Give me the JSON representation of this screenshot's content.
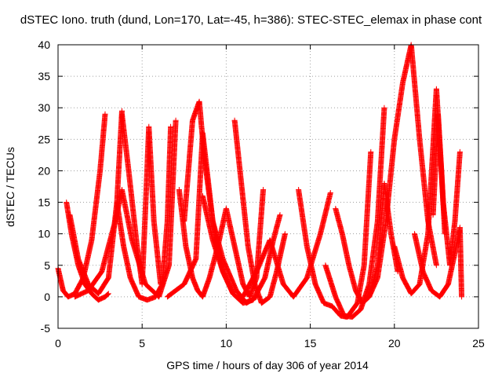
{
  "chart_data": {
    "type": "scatter",
    "title": "dSTEC Iono. truth (dund, Lon=170, Lat=-45, h=386): STEC-STEC_elemax in phase cont",
    "xlabel": "GPS time / hours of day 306 of year 2014",
    "ylabel": "dSTEC  / TECUs",
    "xlim": [
      0,
      25
    ],
    "ylim": [
      -5,
      40
    ],
    "xticks": [
      0,
      5,
      10,
      15,
      20,
      25
    ],
    "yticks": [
      -5,
      0,
      5,
      10,
      15,
      20,
      25,
      30,
      35,
      40
    ],
    "grid": true,
    "marker": "+",
    "color": "#ff0000",
    "series": [
      {
        "x": [
          0.0,
          0.3,
          0.6,
          1.0,
          1.5,
          2.0,
          2.5,
          2.8
        ],
        "y": [
          4.5,
          1.0,
          0.0,
          0.5,
          3.0,
          9.0,
          20.0,
          29.0
        ]
      },
      {
        "x": [
          0.5,
          0.8,
          1.2,
          1.6,
          2.0,
          2.4,
          2.8,
          3.0
        ],
        "y": [
          15.0,
          10.0,
          5.0,
          2.0,
          0.5,
          -0.5,
          0.0,
          0.5
        ]
      },
      {
        "x": [
          0.7,
          1.2,
          1.8,
          2.4,
          3.0,
          3.5,
          3.8
        ],
        "y": [
          13.0,
          6.0,
          2.0,
          0.5,
          3.0,
          15.0,
          29.5
        ]
      },
      {
        "x": [
          3.5,
          3.9,
          4.3,
          4.8,
          5.3,
          5.8,
          6.2,
          6.5,
          6.7
        ],
        "y": [
          15.0,
          8.0,
          3.0,
          0.0,
          -0.5,
          0.0,
          2.0,
          12.0,
          27.0
        ]
      },
      {
        "x": [
          3.8,
          4.2,
          4.7,
          5.0,
          5.2,
          5.4,
          5.7,
          6.1
        ],
        "y": [
          29.0,
          20.0,
          8.0,
          2.0,
          14.0,
          27.0,
          12.0,
          2.0
        ]
      },
      {
        "x": [
          1.0,
          1.8,
          2.6,
          3.4,
          3.8,
          4.4,
          5.2,
          6.0,
          6.6,
          7.0
        ],
        "y": [
          0.0,
          1.0,
          4.0,
          12.0,
          17.0,
          9.0,
          2.0,
          0.0,
          5.0,
          28.0
        ]
      },
      {
        "x": [
          7.2,
          7.6,
          8.0,
          8.3,
          8.6,
          9.0,
          9.5,
          10.0,
          10.5,
          11.0,
          11.4,
          11.8,
          12.2
        ],
        "y": [
          17.0,
          8.0,
          3.0,
          1.0,
          0.0,
          3.0,
          8.0,
          14.0,
          8.0,
          2.0,
          0.0,
          3.0,
          17.0
        ]
      },
      {
        "x": [
          7.5,
          8.0,
          8.4,
          8.7,
          9.2,
          9.8,
          10.6,
          11.2,
          11.8
        ],
        "y": [
          12.0,
          28.0,
          31.0,
          22.0,
          12.0,
          6.0,
          1.0,
          -1.0,
          0.0
        ]
      },
      {
        "x": [
          6.5,
          7.5,
          8.2,
          8.6,
          9.2,
          9.8,
          10.4
        ],
        "y": [
          0.0,
          2.0,
          6.0,
          26.0,
          12.0,
          4.0,
          0.5
        ]
      },
      {
        "x": [
          8.6,
          9.2,
          9.8,
          10.4,
          11.0,
          11.6,
          12.3,
          12.8,
          13.2
        ],
        "y": [
          16.0,
          9.0,
          4.0,
          0.5,
          -1.0,
          -0.5,
          3.0,
          9.0,
          13.0
        ]
      },
      {
        "x": [
          10.5,
          10.9,
          11.3,
          11.7,
          12.1,
          12.6,
          13.0,
          13.5
        ],
        "y": [
          28.0,
          18.0,
          8.0,
          2.0,
          -1.0,
          0.0,
          4.0,
          10.0
        ]
      },
      {
        "x": [
          11.0,
          11.8,
          12.6,
          13.4,
          14.0,
          14.8,
          15.6,
          16.2
        ],
        "y": [
          0.0,
          4.0,
          9.0,
          2.0,
          0.0,
          3.0,
          10.0,
          16.5
        ]
      },
      {
        "x": [
          14.3,
          14.8,
          15.3,
          15.8,
          16.3,
          16.8,
          17.2,
          17.8,
          18.2,
          18.6
        ],
        "y": [
          17.0,
          8.0,
          2.0,
          -1.0,
          -1.5,
          -3.0,
          -3.2,
          -1.0,
          5.0,
          23.0
        ]
      },
      {
        "x": [
          15.9,
          16.5,
          17.0,
          17.5,
          18.0,
          18.5,
          19.0,
          19.4
        ],
        "y": [
          5.0,
          0.0,
          -3.0,
          -3.2,
          -2.0,
          2.0,
          12.0,
          30.0
        ]
      },
      {
        "x": [
          16.5,
          16.9,
          17.3,
          17.7,
          18.1,
          18.5,
          19.0,
          19.4,
          19.8,
          20.2
        ],
        "y": [
          14.0,
          10.0,
          5.0,
          1.0,
          -1.0,
          0.0,
          5.0,
          18.0,
          10.0,
          4.0
        ]
      },
      {
        "x": [
          18.5,
          19.0,
          19.5,
          20.0,
          20.5,
          21.0,
          21.5,
          22.0,
          22.5
        ],
        "y": [
          0.0,
          3.0,
          12.0,
          25.0,
          34.0,
          40.0,
          25.0,
          12.0,
          5.0
        ]
      },
      {
        "x": [
          20.0,
          20.5,
          21.0,
          21.5,
          22.0,
          22.5,
          22.8,
          23.0
        ],
        "y": [
          8.0,
          3.0,
          0.5,
          2.0,
          10.0,
          33.0,
          20.0,
          10.0
        ]
      },
      {
        "x": [
          21.2,
          21.7,
          22.2,
          22.7,
          23.2,
          23.6,
          23.9,
          24.0
        ],
        "y": [
          10.0,
          4.0,
          1.0,
          0.0,
          2.0,
          7.0,
          11.0,
          0.0
        ]
      },
      {
        "x": [
          22.3,
          22.6,
          22.9,
          23.3,
          23.6,
          23.9
        ],
        "y": [
          13.0,
          29.0,
          15.0,
          5.0,
          12.0,
          23.0
        ]
      }
    ]
  }
}
